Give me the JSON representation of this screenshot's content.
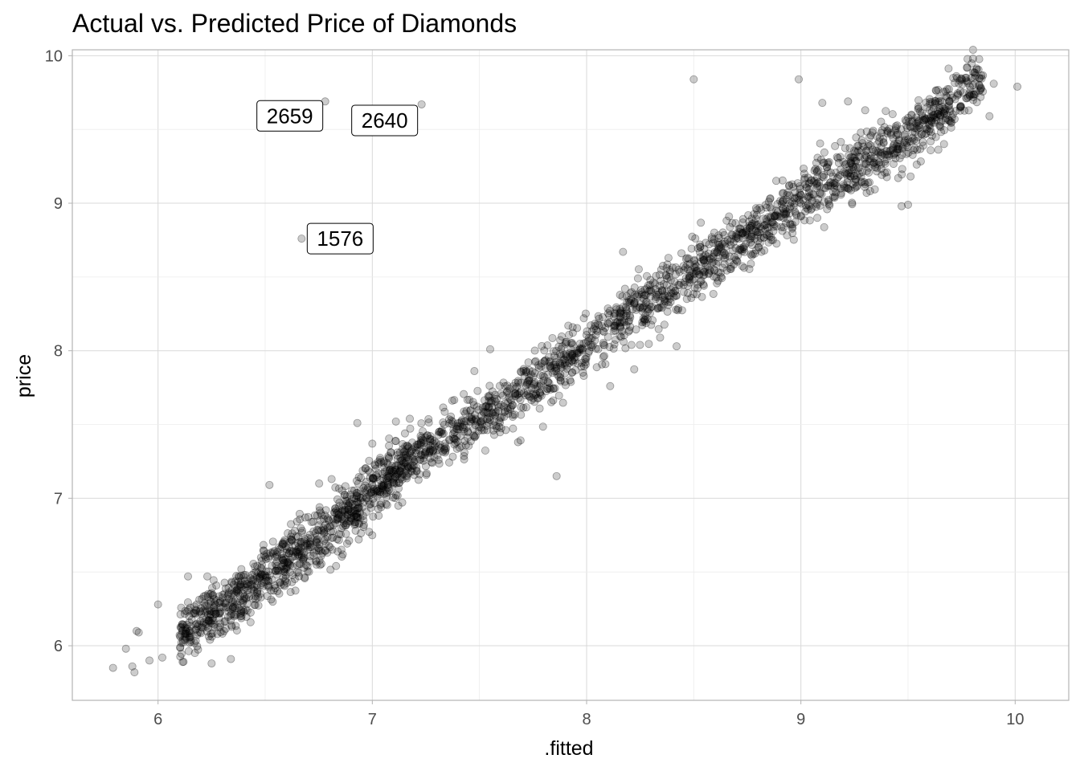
{
  "chart_data": {
    "type": "scatter",
    "title": "Actual vs. Predicted Price of Diamonds",
    "xlabel": ".fitted",
    "ylabel": "price",
    "xlim": [
      5.6,
      10.25
    ],
    "ylim": [
      5.63,
      10.04
    ],
    "x_ticks": [
      "6",
      "7",
      "8",
      "9",
      "10"
    ],
    "y_ticks": [
      "6",
      "7",
      "8",
      "9",
      "10"
    ],
    "grid": true,
    "point_color": "#000000",
    "point_opacity": 0.2,
    "trend": {
      "description_points": [
        [
          5.8,
          5.85
        ],
        [
          6.3,
          6.25
        ],
        [
          6.8,
          6.8
        ],
        [
          7.2,
          7.3
        ],
        [
          7.6,
          7.6
        ],
        [
          8.0,
          8.05
        ],
        [
          8.5,
          8.55
        ],
        [
          9.0,
          9.0
        ],
        [
          9.5,
          9.45
        ],
        [
          9.8,
          9.8
        ]
      ],
      "band_halfwidth": 0.18,
      "n_points": 2600
    },
    "points": [
      [
        5.79,
        5.85
      ],
      [
        5.85,
        5.98
      ],
      [
        5.91,
        6.09
      ],
      [
        5.9,
        6.1
      ],
      [
        5.96,
        5.9
      ],
      [
        6.0,
        6.28
      ],
      [
        5.88,
        5.86
      ],
      [
        5.89,
        5.82
      ],
      [
        6.65,
        6.5
      ],
      [
        6.52,
        7.09
      ],
      [
        6.93,
        7.51
      ],
      [
        7.0,
        7.37
      ],
      [
        6.81,
        7.13
      ],
      [
        7.11,
        7.52
      ],
      [
        7.43,
        7.31
      ],
      [
        7.68,
        7.38
      ],
      [
        7.86,
        7.15
      ],
      [
        8.11,
        7.76
      ],
      [
        8.42,
        8.03
      ],
      [
        7.55,
        8.01
      ],
      [
        8.17,
        8.67
      ],
      [
        8.85,
        9.01
      ],
      [
        9.47,
        8.98
      ],
      [
        9.5,
        8.99
      ],
      [
        8.5,
        9.84
      ],
      [
        8.99,
        9.84
      ],
      [
        9.1,
        9.68
      ],
      [
        9.22,
        9.69
      ],
      [
        9.3,
        9.63
      ],
      [
        10.01,
        9.79
      ],
      [
        9.9,
        9.81
      ],
      [
        9.88,
        9.59
      ],
      [
        6.23,
        6.47
      ],
      [
        6.14,
        6.47
      ],
      [
        6.18,
        6.28
      ],
      [
        6.34,
        5.91
      ],
      [
        6.25,
        5.88
      ],
      [
        6.02,
        5.92
      ]
    ],
    "labeled_points": [
      {
        "label": "2659",
        "x": 6.78,
        "y": 9.69
      },
      {
        "label": "2640",
        "x": 7.23,
        "y": 9.67
      },
      {
        "label": "1576",
        "x": 6.67,
        "y": 8.76
      }
    ]
  }
}
